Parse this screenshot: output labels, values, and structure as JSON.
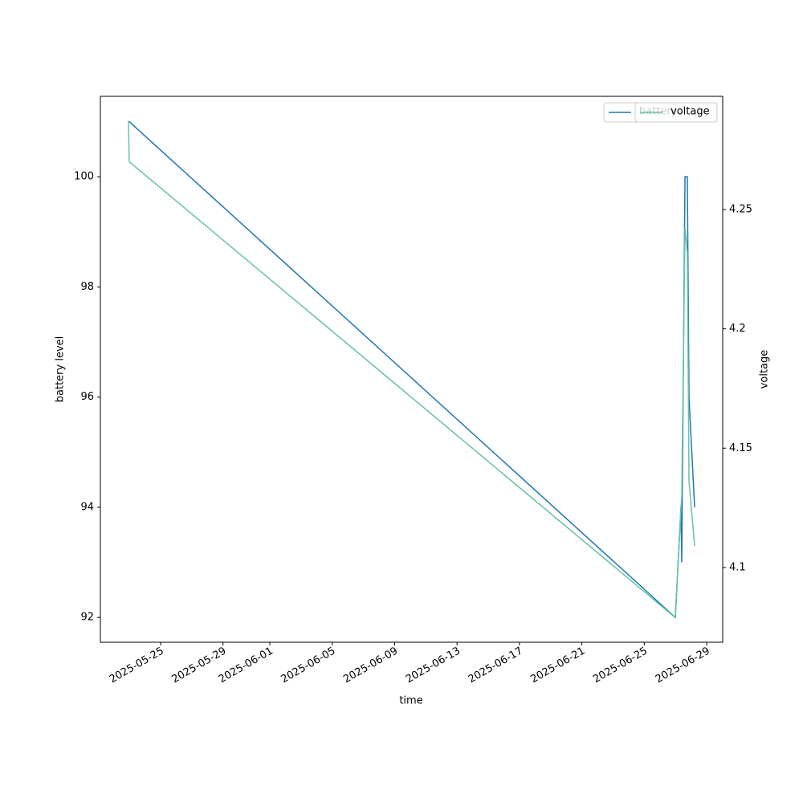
{
  "chart_data": {
    "type": "line",
    "x_label": "time",
    "y_label": "battery level",
    "y2_label": "voltage",
    "x": [
      "2025-05-22 22:30",
      "2025-05-22 23:45",
      "2025-06-26 23:45",
      "2025-06-27 08:30",
      "2025-06-27 09:40",
      "2025-06-27 14:40",
      "2025-06-27 18:15",
      "2025-06-27 20:50",
      "2025-06-28 05:30"
    ],
    "series": [
      {
        "name": "battery",
        "color": "#1f77b4",
        "values": [
          101,
          101,
          92,
          94,
          93,
          100,
          100,
          96,
          94
        ]
      },
      {
        "name": "voltage",
        "color": "#66c2a5",
        "axis": "y2",
        "values": [
          4.287,
          4.27,
          4.079,
          4.125,
          4.13,
          4.242,
          4.232,
          4.136,
          4.109
        ]
      }
    ],
    "xlim": [
      "2025-05-21 03:20",
      "2025-06-30 00:40"
    ],
    "xticks": [
      "2025-05-25",
      "2025-05-29",
      "2025-06-01",
      "2025-06-05",
      "2025-06-09",
      "2025-06-13",
      "2025-06-17",
      "2025-06-21",
      "2025-06-25",
      "2025-06-29"
    ],
    "ylim": [
      91.55,
      101.46
    ],
    "yticks": [
      92,
      94,
      96,
      98,
      100
    ],
    "y2lim": [
      4.0687,
      4.2974
    ],
    "y2ticks": [
      4.1,
      4.15,
      4.2,
      4.25
    ],
    "legend": "upper right"
  }
}
